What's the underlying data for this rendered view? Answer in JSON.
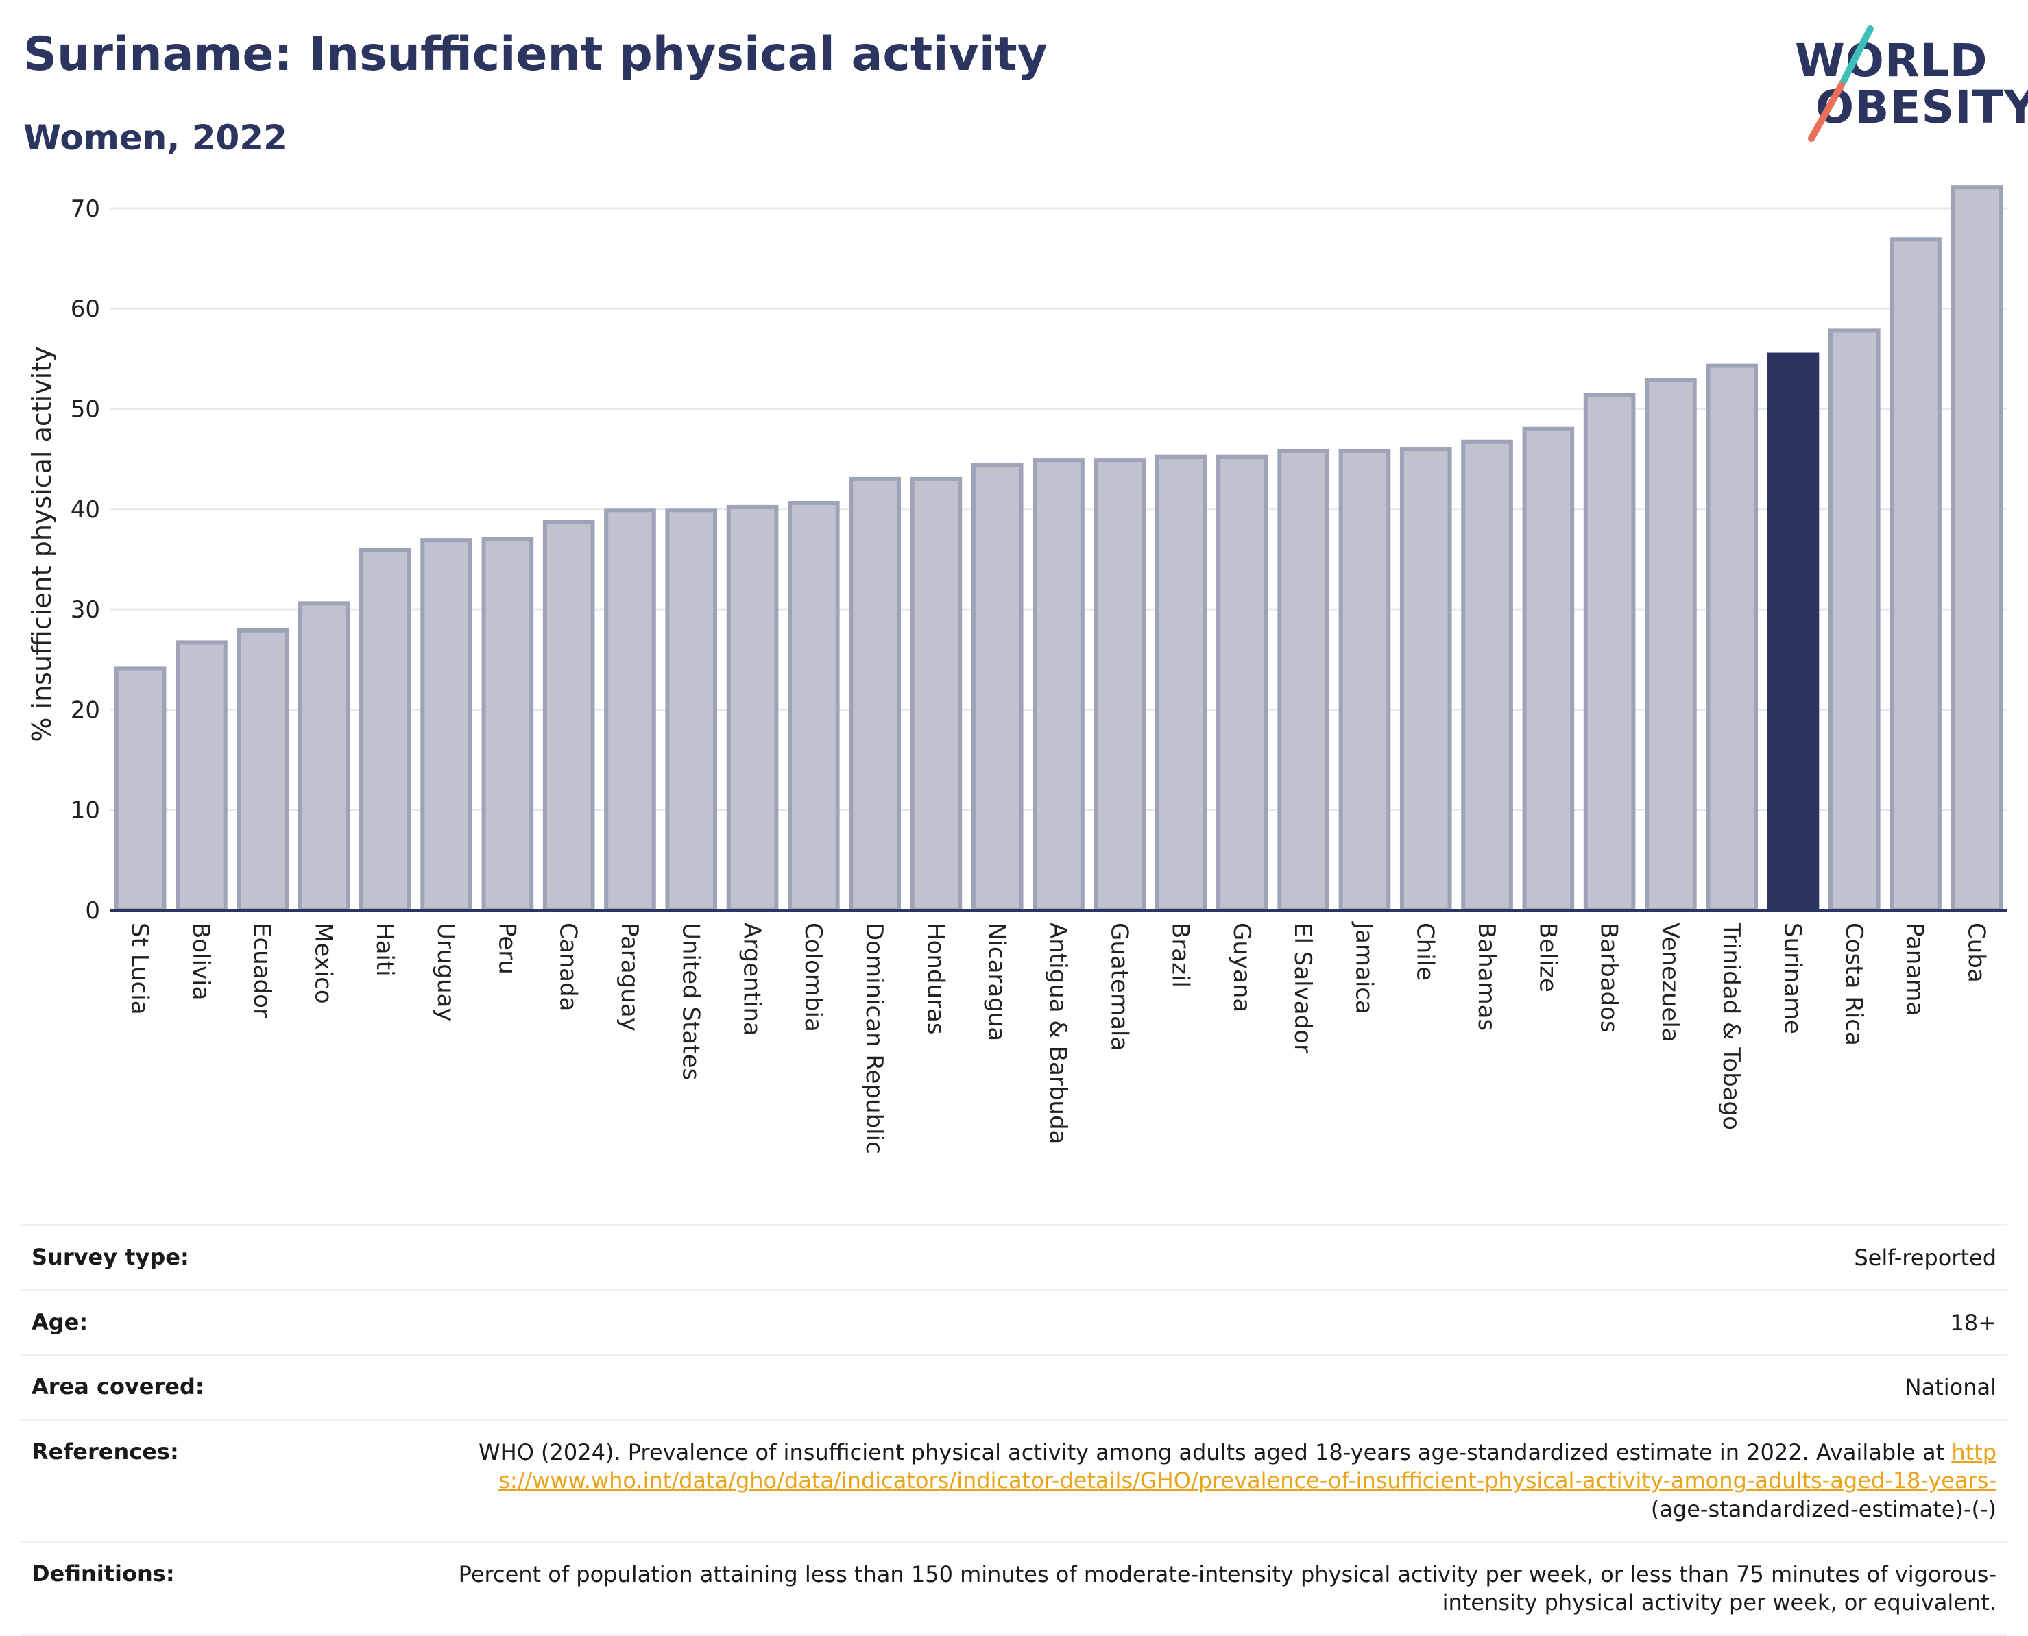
{
  "title": "Suriname: Insufficient physical activity",
  "subtitle": "Women, 2022",
  "logo": {
    "line1": "WORLD",
    "line2": "OBESITY",
    "colors": {
      "text": "#2b3560",
      "slash_top": "#3dbfb8",
      "slash_bottom": "#e8705a"
    }
  },
  "colors": {
    "bar": "#bfc2cf",
    "bar_edge": "#9ea3b8",
    "highlight": "#2b3560",
    "grid": "#e6e8ef",
    "axis": "#2b3560"
  },
  "chart_data": {
    "type": "bar",
    "ylabel": "% insufficient physical activity",
    "xlabel": "",
    "ylim": [
      0,
      73
    ],
    "yticks": [
      0,
      10,
      20,
      30,
      40,
      50,
      60,
      70
    ],
    "grid": true,
    "highlight": "Suriname",
    "categories": [
      "St Lucia",
      "Bolivia",
      "Ecuador",
      "Mexico",
      "Haiti",
      "Uruguay",
      "Peru",
      "Canada",
      "Paraguay",
      "United States",
      "Argentina",
      "Colombia",
      "Dominican Republic",
      "Honduras",
      "Nicaragua",
      "Antigua & Barbuda",
      "Guatemala",
      "Brazil",
      "Guyana",
      "El Salvador",
      "Jamaica",
      "Chile",
      "Bahamas",
      "Belize",
      "Barbados",
      "Venezuela",
      "Trinidad & Tobago",
      "Suriname",
      "Costa Rica",
      "Panama",
      "Cuba"
    ],
    "values": [
      24.1,
      26.7,
      27.9,
      30.6,
      35.9,
      36.9,
      37.0,
      38.7,
      39.9,
      39.9,
      40.2,
      40.6,
      43.0,
      43.0,
      44.4,
      44.9,
      44.9,
      45.2,
      45.2,
      45.8,
      45.8,
      46.0,
      46.7,
      48.0,
      51.4,
      52.9,
      54.3,
      55.4,
      57.8,
      66.9,
      72.1
    ]
  },
  "info": {
    "survey_label": "Survey type:",
    "survey_value": "Self-reported",
    "age_label": "Age:",
    "age_value": "18+",
    "area_label": "Area covered:",
    "area_value": "National",
    "ref_label": "References:",
    "ref_text": "WHO (2024). Prevalence of insufficient physical activity among adults aged 18-years age-standardized estimate in 2022. Available at ",
    "ref_link": "https://www.who.int/data/gho/data/indicators/indicator-details/GHO/prevalence-of-insufficient-physical-activity-among-adults-aged-18-years-",
    "ref_suffix": "(age-standardized-estimate)-(-)",
    "def_label": "Definitions:",
    "def_value": "Percent of population attaining less than 150 minutes of moderate-intensity physical activity per week, or less than 75 minutes of vigorous-intensity physical activity per week, or equivalent."
  }
}
